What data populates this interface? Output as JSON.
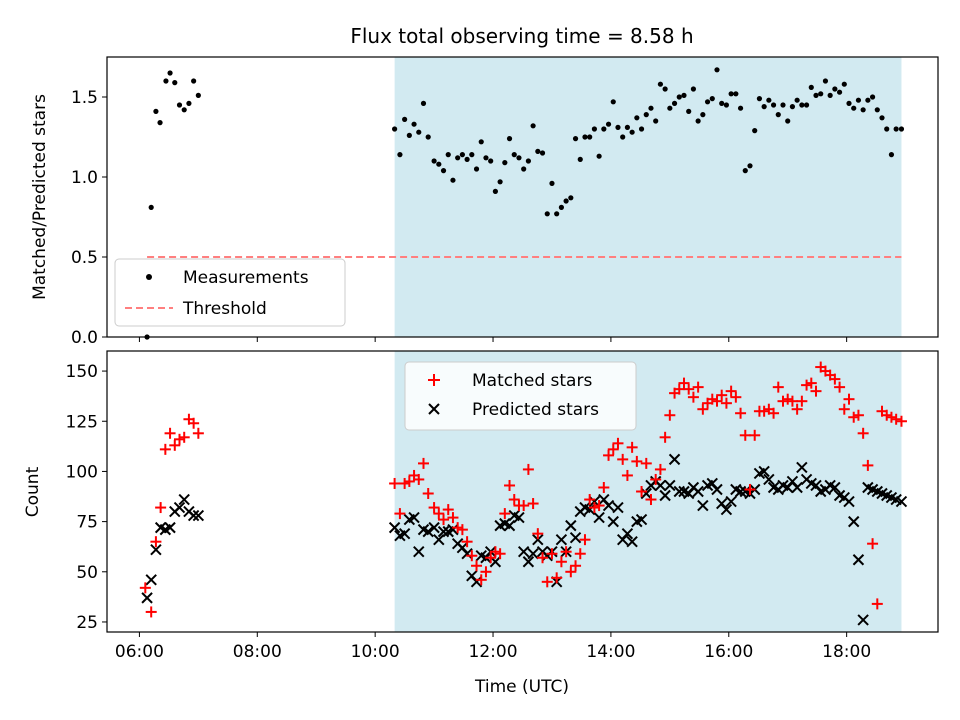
{
  "figure": {
    "title": "Flux total observing time = 8.58 h"
  },
  "chart_data": [
    {
      "type": "scatter",
      "panel": "top",
      "xlabel": "",
      "ylabel": "Matched/Predicted stars",
      "xlim": [
        5.45,
        19.55
      ],
      "ylim": [
        0,
        1.75
      ],
      "yticks": [
        0.0,
        0.5,
        1.0,
        1.5
      ],
      "ytick_labels": [
        "0.0",
        "0.5",
        "1.0",
        "1.5"
      ],
      "shaded_span": [
        10.33,
        18.93
      ],
      "shade_color": "#add8e6",
      "grid": false,
      "legend": {
        "placement": "lower-left",
        "entries": [
          "Measurements",
          "Threshold"
        ]
      },
      "series": [
        {
          "name": "Measurements",
          "color": "#000000",
          "x": [
            6.13,
            6.2,
            6.28,
            6.35,
            6.45,
            6.52,
            6.6,
            6.68,
            6.76,
            6.84,
            6.92,
            7.0,
            10.33,
            10.42,
            10.5,
            10.58,
            10.66,
            10.74,
            10.82,
            10.9,
            11.0,
            11.08,
            11.16,
            11.24,
            11.32,
            11.4,
            11.48,
            11.56,
            11.64,
            11.72,
            11.8,
            11.88,
            11.96,
            12.04,
            12.12,
            12.2,
            12.28,
            12.36,
            12.44,
            12.52,
            12.6,
            12.68,
            12.76,
            12.84,
            12.92,
            13.0,
            13.08,
            13.16,
            13.24,
            13.32,
            13.4,
            13.48,
            13.56,
            13.64,
            13.72,
            13.8,
            13.88,
            13.96,
            14.04,
            14.12,
            14.2,
            14.28,
            14.36,
            14.44,
            14.52,
            14.6,
            14.68,
            14.76,
            14.84,
            14.92,
            15.0,
            15.08,
            15.16,
            15.24,
            15.32,
            15.4,
            15.48,
            15.56,
            15.64,
            15.72,
            15.8,
            15.88,
            15.96,
            16.04,
            16.12,
            16.2,
            16.28,
            16.36,
            16.44,
            16.52,
            16.6,
            16.68,
            16.76,
            16.84,
            16.92,
            17.0,
            17.08,
            17.16,
            17.24,
            17.32,
            17.4,
            17.48,
            17.56,
            17.64,
            17.72,
            17.8,
            17.88,
            17.96,
            18.04,
            18.12,
            18.2,
            18.28,
            18.36,
            18.44,
            18.52,
            18.6,
            18.68,
            18.76,
            18.84,
            18.93
          ],
          "y": [
            0.0,
            0.81,
            1.41,
            1.34,
            1.6,
            1.65,
            1.59,
            1.45,
            1.42,
            1.46,
            1.6,
            1.51,
            1.3,
            1.14,
            1.36,
            1.26,
            1.33,
            1.28,
            1.46,
            1.25,
            1.1,
            1.08,
            1.04,
            1.14,
            0.98,
            1.12,
            1.14,
            1.11,
            1.14,
            1.05,
            1.22,
            1.12,
            1.1,
            0.91,
            0.97,
            1.09,
            1.24,
            1.14,
            1.12,
            1.05,
            1.1,
            1.32,
            1.16,
            1.15,
            0.77,
            0.96,
            0.77,
            0.81,
            0.85,
            0.87,
            1.24,
            1.11,
            1.25,
            1.25,
            1.3,
            1.13,
            1.3,
            1.33,
            1.47,
            1.31,
            1.25,
            1.31,
            1.28,
            1.37,
            1.3,
            1.39,
            1.43,
            1.35,
            1.58,
            1.55,
            1.43,
            1.46,
            1.5,
            1.51,
            1.41,
            1.55,
            1.35,
            1.39,
            1.47,
            1.49,
            1.67,
            1.46,
            1.45,
            1.52,
            1.52,
            1.43,
            1.04,
            1.07,
            1.29,
            1.49,
            1.44,
            1.48,
            1.45,
            1.39,
            1.45,
            1.35,
            1.44,
            1.48,
            1.45,
            1.45,
            1.56,
            1.51,
            1.52,
            1.6,
            1.51,
            1.55,
            1.53,
            1.58,
            1.46,
            1.43,
            1.48,
            1.42,
            1.48,
            1.5,
            1.42,
            1.37,
            1.3,
            1.14,
            1.3,
            1.3
          ]
        },
        {
          "name": "Threshold",
          "color": "#ff7f7f",
          "x": [
            6.13,
            18.93
          ],
          "y": [
            0.5,
            0.5
          ]
        }
      ]
    },
    {
      "type": "scatter",
      "panel": "bottom",
      "xlabel": "Time (UTC)",
      "ylabel": "Count",
      "xlim": [
        5.45,
        19.55
      ],
      "ylim": [
        20,
        160
      ],
      "xticks": [
        6,
        8,
        10,
        12,
        14,
        16,
        18
      ],
      "xtick_labels": [
        "06:00",
        "08:00",
        "10:00",
        "12:00",
        "14:00",
        "16:00",
        "18:00"
      ],
      "yticks": [
        25,
        50,
        75,
        100,
        125,
        150
      ],
      "ytick_labels": [
        "25",
        "50",
        "75",
        "100",
        "125",
        "150"
      ],
      "shaded_span": [
        10.33,
        18.93
      ],
      "shade_color": "#add8e6",
      "grid": false,
      "legend": {
        "placement": "upper-center",
        "entries": [
          "Matched stars",
          "Predicted stars"
        ]
      },
      "series": [
        {
          "name": "Matched stars",
          "marker": "plus",
          "color": "#ff0000",
          "x": [
            6.1,
            6.2,
            6.28,
            6.36,
            6.44,
            6.52,
            6.6,
            6.68,
            6.76,
            6.84,
            6.92,
            7.0,
            10.33,
            10.42,
            10.5,
            10.58,
            10.66,
            10.74,
            10.82,
            10.9,
            11.0,
            11.08,
            11.16,
            11.24,
            11.32,
            11.4,
            11.48,
            11.56,
            11.64,
            11.72,
            11.8,
            11.88,
            11.96,
            12.04,
            12.12,
            12.2,
            12.28,
            12.36,
            12.44,
            12.52,
            12.6,
            12.68,
            12.76,
            12.84,
            12.92,
            13.0,
            13.08,
            13.16,
            13.24,
            13.32,
            13.4,
            13.48,
            13.56,
            13.64,
            13.72,
            13.8,
            13.88,
            13.96,
            14.04,
            14.12,
            14.2,
            14.28,
            14.36,
            14.44,
            14.52,
            14.6,
            14.68,
            14.76,
            14.84,
            14.92,
            15.0,
            15.08,
            15.16,
            15.24,
            15.32,
            15.4,
            15.48,
            15.56,
            15.64,
            15.72,
            15.8,
            15.88,
            15.96,
            16.04,
            16.12,
            16.2,
            16.28,
            16.36,
            16.44,
            16.52,
            16.6,
            16.68,
            16.76,
            16.84,
            16.92,
            17.0,
            17.08,
            17.16,
            17.24,
            17.32,
            17.4,
            17.48,
            17.56,
            17.64,
            17.72,
            17.8,
            17.88,
            17.96,
            18.04,
            18.12,
            18.2,
            18.28,
            18.36,
            18.44,
            18.52,
            18.6,
            18.68,
            18.76,
            18.84,
            18.93
          ],
          "y": [
            42,
            30,
            65,
            82,
            111,
            119,
            113,
            116,
            117,
            126,
            124,
            119,
            94,
            79,
            94,
            95,
            98,
            96,
            104,
            89,
            82,
            79,
            76,
            81,
            77,
            72,
            71,
            65,
            58,
            53,
            46,
            50,
            57,
            60,
            59,
            79,
            93,
            86,
            83,
            83,
            101,
            84,
            69,
            57,
            45,
            59,
            47,
            55,
            60,
            50,
            53,
            59,
            66,
            86,
            82,
            83,
            92,
            108,
            111,
            114,
            106,
            98,
            112,
            105,
            90,
            104,
            86,
            96,
            101,
            117,
            128,
            139,
            141,
            144,
            141,
            137,
            142,
            131,
            134,
            136,
            135,
            138,
            134,
            140,
            137,
            129,
            118,
            91,
            118,
            130,
            130,
            131,
            129,
            142,
            135,
            136,
            135,
            131,
            135,
            143,
            144,
            140,
            152,
            150,
            148,
            146,
            142,
            131,
            136,
            127,
            128,
            119,
            103,
            64,
            34,
            130,
            128,
            127,
            126,
            125
          ],
          "y_note": ""
        },
        {
          "name": "Predicted stars",
          "marker": "x",
          "color": "#000000",
          "x": [
            6.13,
            6.2,
            6.28,
            6.36,
            6.44,
            6.52,
            6.6,
            6.68,
            6.76,
            6.84,
            6.92,
            7.0,
            10.33,
            10.42,
            10.5,
            10.58,
            10.66,
            10.74,
            10.82,
            10.9,
            11.0,
            11.08,
            11.16,
            11.24,
            11.32,
            11.4,
            11.48,
            11.56,
            11.64,
            11.72,
            11.8,
            11.88,
            11.96,
            12.04,
            12.12,
            12.2,
            12.28,
            12.36,
            12.44,
            12.52,
            12.6,
            12.68,
            12.76,
            12.84,
            12.92,
            13.0,
            13.08,
            13.16,
            13.24,
            13.32,
            13.4,
            13.48,
            13.56,
            13.64,
            13.72,
            13.8,
            13.88,
            13.96,
            14.04,
            14.12,
            14.2,
            14.28,
            14.36,
            14.44,
            14.52,
            14.6,
            14.68,
            14.76,
            14.84,
            14.92,
            15.0,
            15.08,
            15.16,
            15.24,
            15.32,
            15.4,
            15.48,
            15.56,
            15.64,
            15.72,
            15.8,
            15.88,
            15.96,
            16.04,
            16.12,
            16.2,
            16.28,
            16.36,
            16.44,
            16.52,
            16.6,
            16.68,
            16.76,
            16.84,
            16.92,
            17.0,
            17.08,
            17.16,
            17.24,
            17.32,
            17.4,
            17.48,
            17.56,
            17.64,
            17.72,
            17.8,
            17.88,
            17.96,
            18.04,
            18.12,
            18.2,
            18.28,
            18.36,
            18.44,
            18.52,
            18.6,
            18.68,
            18.76,
            18.84,
            18.93
          ],
          "y": [
            37,
            46,
            61,
            72,
            71,
            72,
            80,
            82,
            86,
            80,
            78,
            78,
            72,
            68,
            69,
            76,
            77,
            60,
            71,
            70,
            72,
            66,
            70,
            70,
            71,
            64,
            62,
            59,
            48,
            45,
            58,
            57,
            60,
            55,
            73,
            74,
            73,
            78,
            77,
            60,
            55,
            59,
            66,
            60,
            58,
            60,
            45,
            66,
            60,
            73,
            67,
            80,
            82,
            81,
            85,
            77,
            86,
            83,
            75,
            82,
            66,
            69,
            65,
            75,
            76,
            89,
            93,
            95,
            93,
            88,
            93,
            106,
            90,
            90,
            89,
            92,
            90,
            83,
            93,
            94,
            91,
            84,
            81,
            85,
            91,
            90,
            90,
            89,
            91,
            99,
            100,
            96,
            92,
            91,
            93,
            92,
            95,
            92,
            102,
            96,
            94,
            93,
            90,
            91,
            93,
            92,
            88,
            87,
            85,
            75,
            56,
            26,
            92,
            91,
            90,
            89,
            88,
            87,
            86,
            85
          ]
        }
      ]
    }
  ]
}
